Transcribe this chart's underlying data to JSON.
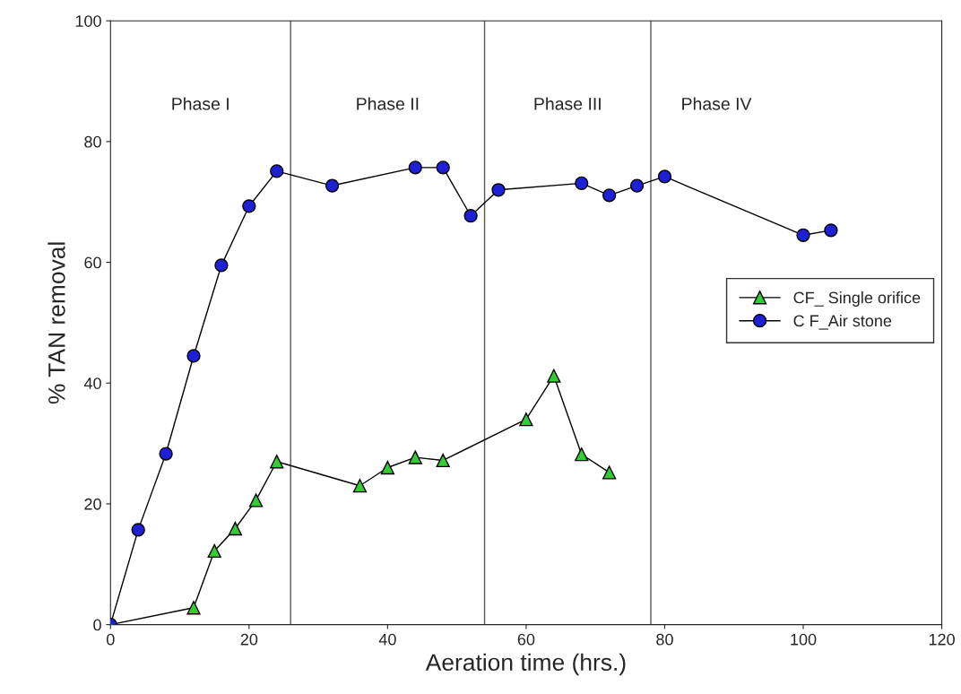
{
  "chart_data": {
    "type": "line",
    "xlabel": "Aeration time (hrs.)",
    "ylabel": "% TAN removal",
    "xlim": [
      0,
      120
    ],
    "xticks": [
      0,
      20,
      40,
      60,
      80,
      100,
      120
    ],
    "ylim": [
      0,
      100
    ],
    "yticks": [
      0,
      20,
      40,
      60,
      80,
      100
    ],
    "grid": false,
    "legend": "right",
    "line_style": "solid",
    "series": [
      {
        "name": "CF_ Single orifice",
        "color": "#33cc33",
        "marker": "triangle",
        "x": [
          0,
          12,
          15,
          18,
          21,
          24,
          36,
          40,
          44,
          48,
          60,
          64,
          68,
          72
        ],
        "values": [
          0,
          2.8,
          12.2,
          15.9,
          20.6,
          27,
          23,
          26,
          27.7,
          27.2,
          34,
          41.2,
          28.2,
          25.2
        ]
      },
      {
        "name": "C F_Air stone",
        "color": "#1f1fd6",
        "marker": "circle",
        "x": [
          0,
          4,
          8,
          12,
          16,
          20,
          24,
          32,
          44,
          48,
          52,
          56,
          68,
          72,
          76,
          80,
          100,
          104
        ],
        "values": [
          0,
          15.7,
          28.3,
          44.5,
          59.5,
          69.3,
          75.1,
          72.7,
          75.7,
          75.7,
          67.7,
          72,
          73.1,
          71.1,
          72.7,
          74.2,
          64.5,
          65.3
        ]
      }
    ],
    "ref_lines": [
      {
        "axis": "x",
        "value": 26,
        "color": "#555555"
      },
      {
        "axis": "x",
        "value": 54,
        "color": "#555555"
      },
      {
        "axis": "x",
        "value": 78,
        "color": "#555555"
      }
    ],
    "annotations": [
      "Phase I",
      "Phase II",
      "Phase III",
      "Phase IV"
    ]
  }
}
